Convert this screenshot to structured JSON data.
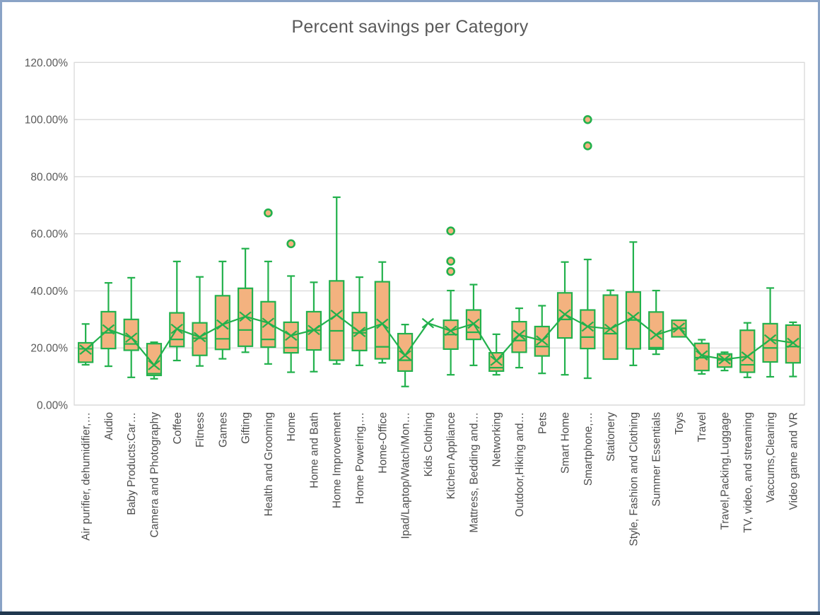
{
  "window": {
    "background": "#ffffff",
    "border_color": "#8aa3c6",
    "bottom_edge_color": "#21384f"
  },
  "chart_data": {
    "type": "boxplot",
    "title": "Percent savings per Category",
    "xlabel": "",
    "ylabel": "",
    "ylim": [
      0,
      120
    ],
    "grid": true,
    "legend": "none",
    "y_ticks": [
      "0.00%",
      "20.00%",
      "40.00%",
      "60.00%",
      "80.00%",
      "100.00%",
      "120.00%"
    ],
    "colors": {
      "box_fill": "#f3b27f",
      "box_stroke": "#22b14c",
      "mean_line": "#22b14c",
      "grid": "#d9d9d9",
      "title_text": "#595959",
      "axis_text": "#4d4d4d"
    },
    "categories": [
      "Air purifier, dehumidifier,…",
      "Audio",
      "Baby Products:Car…",
      "Camera and Photography",
      "Coffee",
      "Fitness",
      "Games",
      "Gifting",
      "Health and Grooming",
      "Home",
      "Home and Bath",
      "Home Improvement",
      "Home Powering,…",
      "Home-Office",
      "Ipad/Laptop/Watch/Mon…",
      "Kids Clothing",
      "Kitchen Appliance",
      "Mattress, Bedding and…",
      "Networking",
      "Outdoor,Hiking and…",
      "Pets",
      "Smart Home",
      "Smartphone,…",
      "Stationery",
      "Style, Fashion and Clothing",
      "Summer Essentials",
      "Toys",
      "Travel",
      "Travel,Packing,Luggage",
      "TV, video, and streaming",
      "Vaccums,Cleaning",
      "Video game and VR"
    ],
    "series": [
      {
        "low": 14.1,
        "q1": 15.0,
        "median": 19.7,
        "q3": 21.8,
        "high": 28.4,
        "mean": 19.4,
        "outliers": []
      },
      {
        "low": 13.6,
        "q1": 19.8,
        "median": 25.3,
        "q3": 32.7,
        "high": 42.8,
        "mean": 26.5,
        "outliers": []
      },
      {
        "low": 9.7,
        "q1": 19.2,
        "median": 21.4,
        "q3": 30.0,
        "high": 44.6,
        "mean": 23.6,
        "outliers": []
      },
      {
        "low": 9.2,
        "q1": 10.4,
        "median": 11.0,
        "q3": 21.5,
        "high": 22.0,
        "mean": 14.0,
        "outliers": []
      },
      {
        "low": 15.6,
        "q1": 20.5,
        "median": 23.0,
        "q3": 32.3,
        "high": 50.3,
        "mean": 26.7,
        "outliers": []
      },
      {
        "low": 13.7,
        "q1": 17.4,
        "median": 23.4,
        "q3": 28.8,
        "high": 44.9,
        "mean": 23.8,
        "outliers": []
      },
      {
        "low": 16.2,
        "q1": 19.5,
        "median": 23.2,
        "q3": 38.3,
        "high": 50.3,
        "mean": 28.2,
        "outliers": []
      },
      {
        "low": 18.5,
        "q1": 20.6,
        "median": 26.3,
        "q3": 40.9,
        "high": 54.8,
        "mean": 31.0,
        "outliers": []
      },
      {
        "low": 14.4,
        "q1": 20.3,
        "median": 23.0,
        "q3": 36.2,
        "high": 50.3,
        "mean": 28.8,
        "outliers": [
          67.3
        ]
      },
      {
        "low": 11.5,
        "q1": 18.3,
        "median": 20.1,
        "q3": 29.0,
        "high": 45.2,
        "mean": 24.3,
        "outliers": [
          56.5
        ]
      },
      {
        "low": 11.7,
        "q1": 19.3,
        "median": 26.2,
        "q3": 32.7,
        "high": 43.0,
        "mean": 26.3,
        "outliers": []
      },
      {
        "low": 14.4,
        "q1": 15.7,
        "median": 26.0,
        "q3": 43.5,
        "high": 72.8,
        "mean": 31.6,
        "outliers": []
      },
      {
        "low": 13.9,
        "q1": 19.1,
        "median": 25.3,
        "q3": 32.4,
        "high": 44.8,
        "mean": 25.6,
        "outliers": []
      },
      {
        "low": 14.8,
        "q1": 16.2,
        "median": 20.4,
        "q3": 43.2,
        "high": 50.1,
        "mean": 28.5,
        "outliers": []
      },
      {
        "low": 6.5,
        "q1": 11.9,
        "median": 15.7,
        "q3": 25.0,
        "high": 28.2,
        "mean": 17.4,
        "outliers": []
      },
      {
        "low": 28.7,
        "q1": 28.7,
        "median": 28.7,
        "q3": 28.7,
        "high": 28.7,
        "mean": 28.7,
        "outliers": []
      },
      {
        "low": 10.6,
        "q1": 19.6,
        "median": 24.7,
        "q3": 29.7,
        "high": 40.1,
        "mean": 26.0,
        "outliers": [
          61.0,
          50.4,
          46.8
        ]
      },
      {
        "low": 13.9,
        "q1": 23.0,
        "median": 25.5,
        "q3": 33.3,
        "high": 42.2,
        "mean": 28.5,
        "outliers": []
      },
      {
        "low": 10.6,
        "q1": 11.9,
        "median": 13.1,
        "q3": 18.3,
        "high": 24.8,
        "mean": 15.5,
        "outliers": []
      },
      {
        "low": 13.1,
        "q1": 18.5,
        "median": 22.6,
        "q3": 29.2,
        "high": 33.9,
        "mean": 24.6,
        "outliers": []
      },
      {
        "low": 11.1,
        "q1": 17.2,
        "median": 20.5,
        "q3": 27.5,
        "high": 34.8,
        "mean": 22.6,
        "outliers": []
      },
      {
        "low": 10.6,
        "q1": 23.5,
        "median": 30.0,
        "q3": 39.3,
        "high": 50.1,
        "mean": 31.8,
        "outliers": []
      },
      {
        "low": 9.4,
        "q1": 19.8,
        "median": 23.8,
        "q3": 33.3,
        "high": 51.0,
        "mean": 27.5,
        "outliers": [
          100.0,
          90.8
        ]
      },
      {
        "low": 16.1,
        "q1": 16.1,
        "median": 25.0,
        "q3": 38.5,
        "high": 40.2,
        "mean": 26.7,
        "outliers": []
      },
      {
        "low": 13.9,
        "q1": 19.7,
        "median": 29.8,
        "q3": 39.6,
        "high": 57.1,
        "mean": 30.9,
        "outliers": []
      },
      {
        "low": 17.8,
        "q1": 19.6,
        "median": 20.1,
        "q3": 32.6,
        "high": 40.1,
        "mean": 24.6,
        "outliers": []
      },
      {
        "low": 23.9,
        "q1": 23.9,
        "median": 26.9,
        "q3": 29.7,
        "high": 29.7,
        "mean": 27.1,
        "outliers": []
      },
      {
        "low": 10.9,
        "q1": 12.1,
        "median": 16.6,
        "q3": 21.6,
        "high": 22.9,
        "mean": 17.4,
        "outliers": []
      },
      {
        "low": 12.1,
        "q1": 13.3,
        "median": 15.8,
        "q3": 17.9,
        "high": 18.5,
        "mean": 16.0,
        "outliers": []
      },
      {
        "low": 9.7,
        "q1": 11.5,
        "median": 14.1,
        "q3": 26.2,
        "high": 28.8,
        "mean": 17.0,
        "outliers": []
      },
      {
        "low": 9.9,
        "q1": 15.1,
        "median": 20.0,
        "q3": 28.5,
        "high": 41.0,
        "mean": 23.0,
        "outliers": []
      },
      {
        "low": 10.0,
        "q1": 14.8,
        "median": 20.5,
        "q3": 28.0,
        "high": 29.0,
        "mean": 21.8,
        "outliers": []
      }
    ]
  }
}
